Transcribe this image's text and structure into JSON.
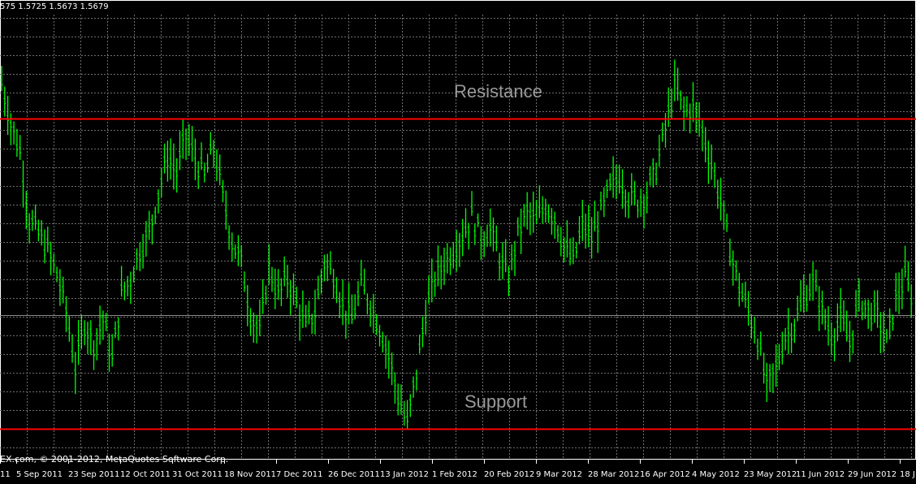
{
  "header": {
    "ohlc_text": "575 1.5725 1.5673 1.5679"
  },
  "footer": {
    "copyright": "EX.com, © 2001-2012, MetaQuotes Software Corp."
  },
  "colors": {
    "background": "#000000",
    "grid": "#6f6f6f",
    "candles": "#00ff00",
    "level_lines": "#ff0000",
    "axis_text": "#ffffff",
    "annotation": "#9a9a9a"
  },
  "chart_data": {
    "type": "line",
    "title": "",
    "xlabel": "",
    "ylabel": "",
    "grid": true,
    "x_tick_labels": [
      "11",
      "5 Sep 2011",
      "23 Sep 2011",
      "12 Oct 2011",
      "31 Oct 2011",
      "18 Nov 2011",
      "7 Dec 2011",
      "26 Dec 2011",
      "13 Jan 2012",
      "1 Feb 2012",
      "20 Feb 2012",
      "9 Mar 2012",
      "28 Mar 2012",
      "16 Apr 2012",
      "4 May 2012",
      "23 May 2012",
      "11 Jun 2012",
      "29 Jun 2012",
      "18 J"
    ],
    "ylim": [
      0,
      1
    ],
    "series": [
      {
        "values": [
          0.89,
          0.79,
          0.72,
          0.55,
          0.52,
          0.48,
          0.42,
          0.33,
          0.19,
          0.3,
          0.25,
          0.31,
          0.21,
          0.37,
          0.41,
          0.48,
          0.52,
          0.62,
          0.71,
          0.67,
          0.76,
          0.7,
          0.66,
          0.73,
          0.61,
          0.5,
          0.45,
          0.32,
          0.28,
          0.44,
          0.37,
          0.41,
          0.35,
          0.29,
          0.33,
          0.45,
          0.42,
          0.34,
          0.31,
          0.39,
          0.35,
          0.29,
          0.22,
          0.12,
          0.05,
          0.18,
          0.33,
          0.41,
          0.45,
          0.48,
          0.52,
          0.56,
          0.51,
          0.53,
          0.46,
          0.41,
          0.52,
          0.57,
          0.55,
          0.59,
          0.56,
          0.49,
          0.45,
          0.54,
          0.51,
          0.57,
          0.63,
          0.66,
          0.61,
          0.6,
          0.62,
          0.68,
          0.78,
          0.88,
          0.82,
          0.83,
          0.77,
          0.69,
          0.6,
          0.48,
          0.39,
          0.33,
          0.26,
          0.14,
          0.19,
          0.27,
          0.3,
          0.36,
          0.4,
          0.33,
          0.27,
          0.31,
          0.25,
          0.36,
          0.33,
          0.32,
          0.25,
          0.36,
          0.41,
          0.35
        ]
      }
    ],
    "levels": [
      {
        "name": "Resistance",
        "value": 0.8
      },
      {
        "name": "Support",
        "value": 0.04
      }
    ],
    "annotations": [
      "Resistance",
      "Support"
    ]
  }
}
